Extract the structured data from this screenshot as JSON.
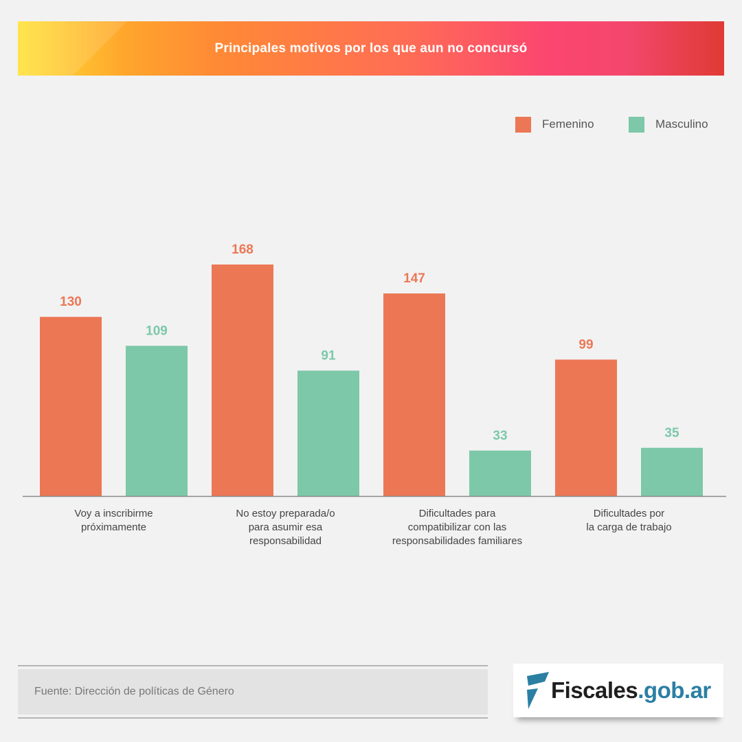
{
  "header": {
    "title": "Principales motivos por los que aun no concursó"
  },
  "colors": {
    "femenino": "#ec7755",
    "masculino": "#7cc8a9",
    "axis": "#8a8a8a"
  },
  "chart_data": {
    "type": "bar",
    "title": "Principales motivos por los que aun no concursó",
    "categories": [
      "Voy a inscribirme próximamente",
      "No estoy preparada/o para asumir esa responsabilidad",
      "Dificultades para compatibilizar con las responsabilidades familiares",
      "Dificultades por la carga de trabajo"
    ],
    "category_lines": [
      [
        "Voy a inscribirme",
        "próximamente"
      ],
      [
        "No estoy preparada/o",
        "para asumir esa",
        "responsabilidad"
      ],
      [
        "Dificultades para",
        "compatibilizar con las",
        "responsabilidades familiares"
      ],
      [
        "Dificultades por",
        "la carga de trabajo"
      ]
    ],
    "series": [
      {
        "name": "Femenino",
        "values": [
          130,
          168,
          147,
          99
        ]
      },
      {
        "name": "Masculino",
        "values": [
          109,
          91,
          33,
          35
        ]
      }
    ],
    "xlabel": "",
    "ylabel": "",
    "ylim": [
      0,
      168
    ],
    "grid": false,
    "data_labels": true,
    "legend_position": "top-right"
  },
  "legend": {
    "items": [
      "Femenino",
      "Masculino"
    ]
  },
  "footer": {
    "source": "Fuente: Dirección de políticas de Género",
    "logo_primary": "Fiscales",
    "logo_secondary": ".gob.ar"
  }
}
